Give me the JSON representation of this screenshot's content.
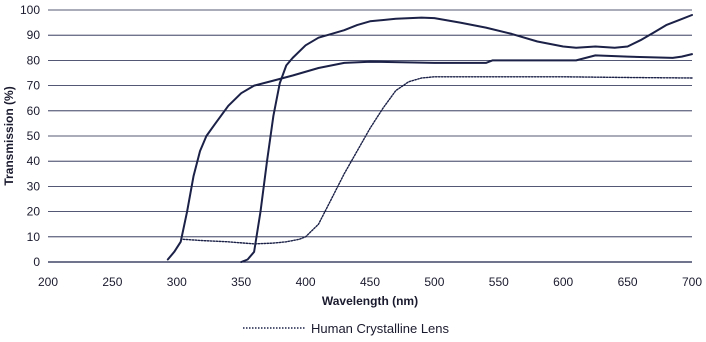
{
  "chart_data": {
    "type": "line",
    "title": "",
    "xlabel": "Wavelength (nm)",
    "ylabel": "Transmission (%)",
    "xlim": [
      200,
      700
    ],
    "ylim": [
      0,
      100
    ],
    "x_ticks": [
      200,
      250,
      300,
      350,
      400,
      450,
      500,
      550,
      600,
      650,
      700
    ],
    "y_ticks": [
      0,
      10,
      20,
      30,
      40,
      50,
      60,
      70,
      80,
      90,
      100
    ],
    "grid": "horizontal",
    "legend_position": "bottom-center",
    "colors": {
      "line": "#1b2147",
      "grid": "#1b2147",
      "text": "#1a1a2e"
    },
    "series": [
      {
        "style": "solid",
        "points": [
          [
            293,
            1
          ],
          [
            298,
            4
          ],
          [
            303,
            8
          ],
          [
            308,
            20
          ],
          [
            313,
            34
          ],
          [
            318,
            44
          ],
          [
            323,
            50
          ],
          [
            330,
            55
          ],
          [
            340,
            62
          ],
          [
            350,
            67
          ],
          [
            360,
            70
          ],
          [
            375,
            72
          ],
          [
            390,
            74
          ],
          [
            410,
            77
          ],
          [
            430,
            79
          ],
          [
            450,
            79.5
          ],
          [
            500,
            79
          ],
          [
            540,
            79
          ],
          [
            545,
            80
          ],
          [
            560,
            80
          ],
          [
            610,
            80
          ],
          [
            625,
            82
          ],
          [
            650,
            81.5
          ],
          [
            685,
            81
          ],
          [
            692,
            81.5
          ],
          [
            700,
            82.5
          ]
        ]
      },
      {
        "style": "solid",
        "points": [
          [
            350,
            0
          ],
          [
            355,
            1
          ],
          [
            360,
            4
          ],
          [
            365,
            20
          ],
          [
            370,
            40
          ],
          [
            375,
            58
          ],
          [
            380,
            71
          ],
          [
            385,
            78
          ],
          [
            390,
            81
          ],
          [
            400,
            86
          ],
          [
            410,
            89
          ],
          [
            420,
            90.5
          ],
          [
            430,
            92
          ],
          [
            440,
            94
          ],
          [
            450,
            95.5
          ],
          [
            470,
            96.5
          ],
          [
            490,
            97
          ],
          [
            500,
            96.8
          ],
          [
            520,
            95
          ],
          [
            540,
            93
          ],
          [
            560,
            90.5
          ],
          [
            580,
            87.5
          ],
          [
            600,
            85.5
          ],
          [
            610,
            85
          ],
          [
            625,
            85.5
          ],
          [
            640,
            85
          ],
          [
            650,
            85.5
          ],
          [
            660,
            88
          ],
          [
            670,
            91
          ],
          [
            680,
            94
          ],
          [
            690,
            96
          ],
          [
            700,
            98
          ]
        ]
      },
      {
        "name": "Human Crystalline Lens",
        "style": "dotted",
        "points": [
          [
            305,
            9
          ],
          [
            320,
            8.5
          ],
          [
            340,
            8
          ],
          [
            360,
            7.2
          ],
          [
            375,
            7.5
          ],
          [
            385,
            8
          ],
          [
            395,
            9
          ],
          [
            400,
            10
          ],
          [
            410,
            15
          ],
          [
            420,
            25
          ],
          [
            430,
            35
          ],
          [
            440,
            44
          ],
          [
            450,
            53
          ],
          [
            460,
            61
          ],
          [
            470,
            68
          ],
          [
            480,
            71.5
          ],
          [
            490,
            73
          ],
          [
            500,
            73.5
          ],
          [
            550,
            73.5
          ],
          [
            600,
            73.5
          ],
          [
            650,
            73.2
          ],
          [
            700,
            73
          ]
        ]
      }
    ]
  }
}
